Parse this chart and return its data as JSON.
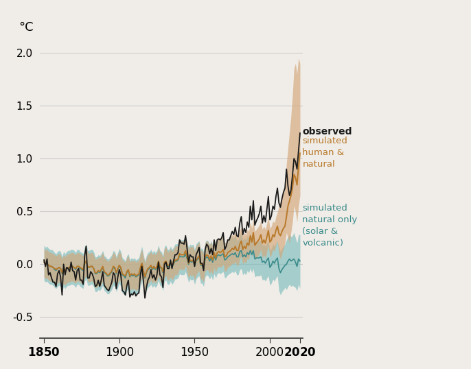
{
  "years": [
    1850,
    1851,
    1852,
    1853,
    1854,
    1855,
    1856,
    1857,
    1858,
    1859,
    1860,
    1861,
    1862,
    1863,
    1864,
    1865,
    1866,
    1867,
    1868,
    1869,
    1870,
    1871,
    1872,
    1873,
    1874,
    1875,
    1876,
    1877,
    1878,
    1879,
    1880,
    1881,
    1882,
    1883,
    1884,
    1885,
    1886,
    1887,
    1888,
    1889,
    1890,
    1891,
    1892,
    1893,
    1894,
    1895,
    1896,
    1897,
    1898,
    1899,
    1900,
    1901,
    1902,
    1903,
    1904,
    1905,
    1906,
    1907,
    1908,
    1909,
    1910,
    1911,
    1912,
    1913,
    1914,
    1915,
    1916,
    1917,
    1918,
    1919,
    1920,
    1921,
    1922,
    1923,
    1924,
    1925,
    1926,
    1927,
    1928,
    1929,
    1930,
    1931,
    1932,
    1933,
    1934,
    1935,
    1936,
    1937,
    1938,
    1939,
    1940,
    1941,
    1942,
    1943,
    1944,
    1945,
    1946,
    1947,
    1948,
    1949,
    1950,
    1951,
    1952,
    1953,
    1954,
    1955,
    1956,
    1957,
    1958,
    1959,
    1960,
    1961,
    1962,
    1963,
    1964,
    1965,
    1966,
    1967,
    1968,
    1969,
    1970,
    1971,
    1972,
    1973,
    1974,
    1975,
    1976,
    1977,
    1978,
    1979,
    1980,
    1981,
    1982,
    1983,
    1984,
    1985,
    1986,
    1987,
    1988,
    1989,
    1990,
    1991,
    1992,
    1993,
    1994,
    1995,
    1996,
    1997,
    1998,
    1999,
    2000,
    2001,
    2002,
    2003,
    2004,
    2005,
    2006,
    2007,
    2008,
    2009,
    2010,
    2011,
    2012,
    2013,
    2014,
    2015,
    2016,
    2017,
    2018,
    2019,
    2020
  ],
  "observed": [
    0.04,
    -0.02,
    0.05,
    -0.1,
    -0.08,
    -0.13,
    -0.17,
    -0.17,
    -0.21,
    -0.09,
    -0.06,
    -0.12,
    -0.29,
    0.0,
    -0.1,
    -0.03,
    -0.04,
    -0.07,
    0.02,
    -0.06,
    -0.07,
    -0.15,
    -0.06,
    -0.04,
    -0.15,
    -0.15,
    -0.19,
    0.08,
    0.17,
    -0.13,
    -0.13,
    -0.07,
    -0.09,
    -0.13,
    -0.21,
    -0.2,
    -0.15,
    -0.21,
    -0.15,
    -0.07,
    -0.2,
    -0.22,
    -0.24,
    -0.25,
    -0.21,
    -0.17,
    -0.08,
    -0.1,
    -0.23,
    -0.12,
    -0.05,
    -0.1,
    -0.25,
    -0.26,
    -0.29,
    -0.2,
    -0.15,
    -0.31,
    -0.28,
    -0.29,
    -0.26,
    -0.3,
    -0.28,
    -0.27,
    -0.1,
    -0.02,
    -0.16,
    -0.32,
    -0.22,
    -0.15,
    -0.12,
    -0.05,
    -0.13,
    -0.1,
    -0.15,
    -0.1,
    0.02,
    -0.1,
    -0.12,
    -0.22,
    0.0,
    0.02,
    -0.04,
    -0.04,
    0.04,
    -0.04,
    0.03,
    0.09,
    0.09,
    0.11,
    0.23,
    0.2,
    0.2,
    0.19,
    0.27,
    0.15,
    0.02,
    0.09,
    0.07,
    0.07,
    -0.02,
    0.09,
    0.12,
    0.16,
    0.01,
    0.01,
    -0.06,
    0.14,
    0.19,
    0.17,
    0.1,
    0.15,
    0.09,
    0.23,
    0.13,
    0.23,
    0.24,
    0.23,
    0.25,
    0.3,
    0.14,
    0.17,
    0.23,
    0.23,
    0.27,
    0.31,
    0.28,
    0.35,
    0.27,
    0.26,
    0.39,
    0.45,
    0.28,
    0.34,
    0.3,
    0.4,
    0.35,
    0.55,
    0.42,
    0.6,
    0.37,
    0.41,
    0.44,
    0.48,
    0.55,
    0.39,
    0.46,
    0.4,
    0.52,
    0.64,
    0.42,
    0.46,
    0.55,
    0.52,
    0.64,
    0.72,
    0.58,
    0.54,
    0.62,
    0.68,
    0.72,
    0.9,
    0.74,
    0.65,
    0.7,
    0.84,
    1.0,
    0.97,
    0.9,
    1.07,
    1.24
  ],
  "simulated_human_natural_mean": [
    0.02,
    0.0,
    0.01,
    -0.01,
    -0.02,
    -0.02,
    -0.03,
    -0.04,
    -0.05,
    -0.04,
    -0.03,
    -0.04,
    -0.08,
    -0.04,
    -0.06,
    -0.04,
    -0.03,
    -0.03,
    -0.02,
    -0.02,
    -0.03,
    -0.04,
    -0.02,
    -0.02,
    -0.03,
    -0.04,
    -0.05,
    0.01,
    0.03,
    -0.02,
    -0.03,
    -0.02,
    -0.02,
    -0.04,
    -0.08,
    -0.08,
    -0.06,
    -0.07,
    -0.05,
    -0.02,
    -0.07,
    -0.08,
    -0.1,
    -0.1,
    -0.08,
    -0.06,
    -0.02,
    -0.03,
    -0.08,
    -0.04,
    -0.01,
    -0.03,
    -0.09,
    -0.1,
    -0.11,
    -0.07,
    -0.05,
    -0.11,
    -0.09,
    -0.1,
    -0.09,
    -0.11,
    -0.1,
    -0.09,
    -0.03,
    0.01,
    -0.06,
    -0.12,
    -0.07,
    -0.04,
    -0.03,
    -0.01,
    -0.04,
    -0.02,
    -0.04,
    -0.02,
    0.03,
    -0.02,
    -0.03,
    -0.07,
    0.02,
    0.03,
    -0.01,
    -0.01,
    0.02,
    -0.01,
    0.01,
    0.04,
    0.04,
    0.05,
    0.1,
    0.09,
    0.09,
    0.09,
    0.13,
    0.07,
    0.01,
    0.04,
    0.03,
    0.04,
    -0.01,
    0.04,
    0.06,
    0.08,
    0.0,
    0.0,
    -0.03,
    0.07,
    0.09,
    0.08,
    0.05,
    0.08,
    0.04,
    0.11,
    0.06,
    0.11,
    0.12,
    0.11,
    0.12,
    0.14,
    0.07,
    0.08,
    0.11,
    0.12,
    0.13,
    0.15,
    0.14,
    0.17,
    0.13,
    0.13,
    0.19,
    0.22,
    0.14,
    0.17,
    0.15,
    0.2,
    0.18,
    0.27,
    0.21,
    0.3,
    0.18,
    0.2,
    0.22,
    0.24,
    0.28,
    0.2,
    0.23,
    0.2,
    0.26,
    0.32,
    0.21,
    0.23,
    0.28,
    0.26,
    0.32,
    0.36,
    0.29,
    0.27,
    0.31,
    0.34,
    0.36,
    0.45,
    0.55,
    0.6,
    0.65,
    0.72,
    0.85,
    0.82,
    0.75,
    0.92,
    1.05
  ],
  "simulated_human_natural_upper": [
    0.15,
    0.13,
    0.14,
    0.12,
    0.11,
    0.11,
    0.1,
    0.09,
    0.08,
    0.09,
    0.1,
    0.09,
    0.05,
    0.09,
    0.07,
    0.09,
    0.1,
    0.1,
    0.11,
    0.11,
    0.1,
    0.09,
    0.11,
    0.11,
    0.1,
    0.09,
    0.08,
    0.14,
    0.16,
    0.11,
    0.1,
    0.11,
    0.11,
    0.09,
    0.05,
    0.05,
    0.07,
    0.06,
    0.08,
    0.11,
    0.06,
    0.05,
    0.03,
    0.03,
    0.05,
    0.07,
    0.11,
    0.1,
    0.05,
    0.09,
    0.12,
    0.1,
    0.04,
    0.03,
    0.02,
    0.06,
    0.08,
    0.02,
    0.04,
    0.03,
    0.04,
    0.02,
    0.03,
    0.04,
    0.1,
    0.14,
    0.07,
    0.01,
    0.06,
    0.09,
    0.1,
    0.12,
    0.09,
    0.11,
    0.09,
    0.11,
    0.16,
    0.11,
    0.1,
    0.06,
    0.15,
    0.16,
    0.12,
    0.12,
    0.15,
    0.12,
    0.14,
    0.17,
    0.17,
    0.18,
    0.23,
    0.22,
    0.22,
    0.22,
    0.26,
    0.2,
    0.14,
    0.17,
    0.16,
    0.17,
    0.12,
    0.17,
    0.19,
    0.21,
    0.13,
    0.13,
    0.1,
    0.2,
    0.22,
    0.21,
    0.18,
    0.21,
    0.17,
    0.24,
    0.19,
    0.24,
    0.25,
    0.24,
    0.25,
    0.27,
    0.2,
    0.21,
    0.24,
    0.25,
    0.26,
    0.28,
    0.27,
    0.3,
    0.26,
    0.26,
    0.32,
    0.35,
    0.27,
    0.3,
    0.28,
    0.33,
    0.31,
    0.4,
    0.34,
    0.43,
    0.31,
    0.33,
    0.35,
    0.37,
    0.41,
    0.33,
    0.36,
    0.33,
    0.39,
    0.45,
    0.34,
    0.36,
    0.41,
    0.39,
    0.45,
    0.49,
    0.55,
    0.6,
    0.65,
    0.7,
    0.75,
    0.95,
    1.1,
    1.25,
    1.4,
    1.6,
    1.85,
    1.9,
    1.8,
    1.95,
    1.9
  ],
  "simulated_human_natural_lower": [
    -0.12,
    -0.14,
    -0.13,
    -0.15,
    -0.16,
    -0.16,
    -0.17,
    -0.18,
    -0.19,
    -0.18,
    -0.17,
    -0.18,
    -0.22,
    -0.18,
    -0.2,
    -0.18,
    -0.17,
    -0.17,
    -0.16,
    -0.16,
    -0.17,
    -0.18,
    -0.16,
    -0.16,
    -0.17,
    -0.18,
    -0.19,
    -0.13,
    -0.11,
    -0.16,
    -0.17,
    -0.16,
    -0.16,
    -0.18,
    -0.22,
    -0.22,
    -0.2,
    -0.21,
    -0.19,
    -0.16,
    -0.21,
    -0.22,
    -0.24,
    -0.24,
    -0.22,
    -0.2,
    -0.16,
    -0.17,
    -0.22,
    -0.18,
    -0.15,
    -0.17,
    -0.23,
    -0.24,
    -0.25,
    -0.21,
    -0.19,
    -0.25,
    -0.23,
    -0.24,
    -0.23,
    -0.25,
    -0.24,
    -0.23,
    -0.17,
    -0.13,
    -0.2,
    -0.26,
    -0.21,
    -0.18,
    -0.17,
    -0.15,
    -0.18,
    -0.16,
    -0.18,
    -0.16,
    -0.11,
    -0.16,
    -0.17,
    -0.21,
    -0.12,
    -0.11,
    -0.15,
    -0.15,
    -0.12,
    -0.15,
    -0.13,
    -0.1,
    -0.1,
    -0.09,
    -0.04,
    -0.05,
    -0.05,
    -0.05,
    -0.01,
    -0.07,
    -0.13,
    -0.1,
    -0.11,
    -0.1,
    -0.15,
    -0.1,
    -0.08,
    -0.06,
    -0.14,
    -0.14,
    -0.17,
    -0.07,
    -0.05,
    -0.06,
    -0.09,
    -0.06,
    -0.1,
    -0.03,
    -0.08,
    -0.03,
    -0.02,
    -0.03,
    -0.02,
    0.0,
    -0.07,
    -0.06,
    -0.03,
    -0.02,
    -0.01,
    0.01,
    0.0,
    0.03,
    -0.01,
    -0.01,
    0.05,
    0.08,
    0.0,
    0.03,
    0.01,
    0.06,
    0.04,
    0.13,
    0.07,
    0.16,
    0.04,
    0.06,
    0.08,
    0.1,
    0.14,
    0.06,
    0.09,
    0.06,
    0.12,
    0.18,
    0.07,
    0.09,
    0.14,
    0.12,
    0.18,
    0.22,
    0.1,
    0.05,
    0.1,
    0.15,
    0.2,
    0.3,
    0.25,
    0.2,
    0.3,
    0.4,
    0.55,
    0.5,
    0.4,
    0.55,
    0.65
  ],
  "simulated_natural_mean": [
    0.02,
    0.0,
    0.01,
    -0.01,
    -0.02,
    -0.02,
    -0.03,
    -0.05,
    -0.06,
    -0.04,
    -0.03,
    -0.04,
    -0.09,
    -0.04,
    -0.06,
    -0.04,
    -0.03,
    -0.03,
    -0.02,
    -0.02,
    -0.03,
    -0.05,
    -0.02,
    -0.02,
    -0.04,
    -0.05,
    -0.06,
    0.01,
    0.03,
    -0.03,
    -0.03,
    -0.02,
    -0.02,
    -0.04,
    -0.09,
    -0.09,
    -0.07,
    -0.08,
    -0.06,
    -0.03,
    -0.08,
    -0.09,
    -0.11,
    -0.11,
    -0.09,
    -0.07,
    -0.03,
    -0.04,
    -0.09,
    -0.05,
    -0.01,
    -0.04,
    -0.1,
    -0.11,
    -0.13,
    -0.08,
    -0.06,
    -0.12,
    -0.1,
    -0.11,
    -0.1,
    -0.12,
    -0.11,
    -0.1,
    -0.04,
    0.01,
    -0.07,
    -0.13,
    -0.08,
    -0.05,
    -0.04,
    -0.02,
    -0.05,
    -0.03,
    -0.05,
    -0.03,
    0.02,
    -0.03,
    -0.04,
    -0.08,
    0.01,
    0.02,
    -0.02,
    -0.02,
    0.01,
    -0.02,
    0.0,
    0.03,
    0.03,
    0.04,
    0.08,
    0.07,
    0.07,
    0.07,
    0.1,
    0.05,
    0.0,
    0.03,
    0.02,
    0.03,
    -0.02,
    0.03,
    0.05,
    0.06,
    -0.01,
    -0.01,
    -0.04,
    0.05,
    0.07,
    0.06,
    0.03,
    0.06,
    0.02,
    0.08,
    0.04,
    0.08,
    0.09,
    0.08,
    0.09,
    0.1,
    0.04,
    0.05,
    0.07,
    0.08,
    0.09,
    0.1,
    0.09,
    0.11,
    0.07,
    0.07,
    0.12,
    0.13,
    0.07,
    0.09,
    0.07,
    0.11,
    0.09,
    0.13,
    0.09,
    0.13,
    0.05,
    0.06,
    0.06,
    0.06,
    0.07,
    0.02,
    0.03,
    0.01,
    0.04,
    0.06,
    -0.03,
    -0.01,
    0.03,
    0.01,
    0.04,
    0.06,
    -0.04,
    -0.08,
    -0.05,
    -0.03,
    -0.01,
    0.0,
    0.03,
    0.05,
    0.03,
    0.04,
    0.05,
    0.02,
    -0.02,
    0.05,
    0.03
  ],
  "simulated_natural_upper": [
    0.18,
    0.16,
    0.17,
    0.15,
    0.14,
    0.14,
    0.13,
    0.11,
    0.1,
    0.12,
    0.13,
    0.12,
    0.07,
    0.12,
    0.1,
    0.12,
    0.13,
    0.13,
    0.14,
    0.14,
    0.13,
    0.11,
    0.14,
    0.14,
    0.12,
    0.11,
    0.1,
    0.17,
    0.19,
    0.13,
    0.13,
    0.14,
    0.14,
    0.12,
    0.07,
    0.07,
    0.09,
    0.08,
    0.1,
    0.13,
    0.08,
    0.07,
    0.05,
    0.05,
    0.07,
    0.09,
    0.13,
    0.12,
    0.07,
    0.11,
    0.15,
    0.12,
    0.06,
    0.05,
    0.03,
    0.08,
    0.1,
    0.04,
    0.06,
    0.05,
    0.06,
    0.04,
    0.05,
    0.06,
    0.12,
    0.17,
    0.09,
    0.03,
    0.08,
    0.11,
    0.12,
    0.14,
    0.11,
    0.13,
    0.11,
    0.13,
    0.18,
    0.13,
    0.12,
    0.08,
    0.17,
    0.18,
    0.14,
    0.14,
    0.17,
    0.14,
    0.16,
    0.19,
    0.19,
    0.2,
    0.24,
    0.23,
    0.23,
    0.23,
    0.26,
    0.21,
    0.16,
    0.19,
    0.18,
    0.19,
    0.14,
    0.19,
    0.21,
    0.22,
    0.15,
    0.15,
    0.12,
    0.21,
    0.23,
    0.22,
    0.19,
    0.22,
    0.18,
    0.24,
    0.2,
    0.24,
    0.25,
    0.24,
    0.25,
    0.26,
    0.2,
    0.21,
    0.23,
    0.24,
    0.25,
    0.26,
    0.25,
    0.27,
    0.23,
    0.23,
    0.28,
    0.29,
    0.23,
    0.25,
    0.23,
    0.27,
    0.25,
    0.29,
    0.25,
    0.29,
    0.21,
    0.22,
    0.22,
    0.22,
    0.23,
    0.18,
    0.19,
    0.17,
    0.2,
    0.22,
    0.13,
    0.15,
    0.19,
    0.17,
    0.2,
    0.22,
    0.16,
    0.12,
    0.15,
    0.17,
    0.19,
    0.23,
    0.26,
    0.28,
    0.26,
    0.27,
    0.3,
    0.25,
    0.2,
    0.28,
    0.28
  ],
  "simulated_natural_lower": [
    -0.15,
    -0.17,
    -0.16,
    -0.18,
    -0.19,
    -0.19,
    -0.2,
    -0.22,
    -0.23,
    -0.21,
    -0.2,
    -0.21,
    -0.26,
    -0.21,
    -0.23,
    -0.21,
    -0.2,
    -0.2,
    -0.19,
    -0.19,
    -0.2,
    -0.22,
    -0.19,
    -0.19,
    -0.21,
    -0.22,
    -0.23,
    -0.16,
    -0.14,
    -0.2,
    -0.2,
    -0.19,
    -0.19,
    -0.21,
    -0.26,
    -0.26,
    -0.24,
    -0.25,
    -0.23,
    -0.2,
    -0.25,
    -0.26,
    -0.28,
    -0.28,
    -0.26,
    -0.24,
    -0.2,
    -0.21,
    -0.26,
    -0.22,
    -0.18,
    -0.21,
    -0.27,
    -0.28,
    -0.3,
    -0.25,
    -0.23,
    -0.29,
    -0.27,
    -0.28,
    -0.27,
    -0.29,
    -0.28,
    -0.27,
    -0.21,
    -0.16,
    -0.24,
    -0.3,
    -0.25,
    -0.22,
    -0.21,
    -0.19,
    -0.22,
    -0.2,
    -0.22,
    -0.2,
    -0.15,
    -0.2,
    -0.21,
    -0.25,
    -0.16,
    -0.15,
    -0.19,
    -0.19,
    -0.16,
    -0.19,
    -0.17,
    -0.14,
    -0.14,
    -0.13,
    -0.09,
    -0.1,
    -0.1,
    -0.1,
    -0.07,
    -0.12,
    -0.17,
    -0.14,
    -0.15,
    -0.14,
    -0.19,
    -0.14,
    -0.12,
    -0.11,
    -0.18,
    -0.18,
    -0.21,
    -0.12,
    -0.1,
    -0.11,
    -0.14,
    -0.11,
    -0.15,
    -0.09,
    -0.13,
    -0.09,
    -0.08,
    -0.09,
    -0.08,
    -0.07,
    -0.13,
    -0.12,
    -0.1,
    -0.09,
    -0.08,
    -0.07,
    -0.08,
    -0.06,
    -0.1,
    -0.1,
    -0.05,
    -0.04,
    -0.1,
    -0.08,
    -0.1,
    -0.06,
    -0.08,
    -0.04,
    -0.08,
    -0.04,
    -0.12,
    -0.11,
    -0.11,
    -0.11,
    -0.1,
    -0.15,
    -0.14,
    -0.16,
    -0.13,
    -0.11,
    -0.2,
    -0.18,
    -0.14,
    -0.16,
    -0.13,
    -0.11,
    -0.25,
    -0.29,
    -0.26,
    -0.24,
    -0.22,
    -0.24,
    -0.21,
    -0.19,
    -0.21,
    -0.2,
    -0.21,
    -0.22,
    -0.25,
    -0.19,
    -0.23
  ],
  "background_color": "#f0ede8",
  "observed_color": "#1a1a1a",
  "human_natural_color": "#b8792a",
  "human_natural_band_color": "#d4a678",
  "natural_color": "#3a8a8a",
  "natural_band_color": "#7bbcbc",
  "title_label": "°C",
  "xlim": [
    1847,
    2022
  ],
  "ylim": [
    -0.7,
    2.1
  ],
  "yticks": [
    -0.5,
    0.0,
    0.5,
    1.0,
    1.5,
    2.0
  ],
  "xticks": [
    1850,
    1900,
    1950,
    2000,
    2020
  ]
}
